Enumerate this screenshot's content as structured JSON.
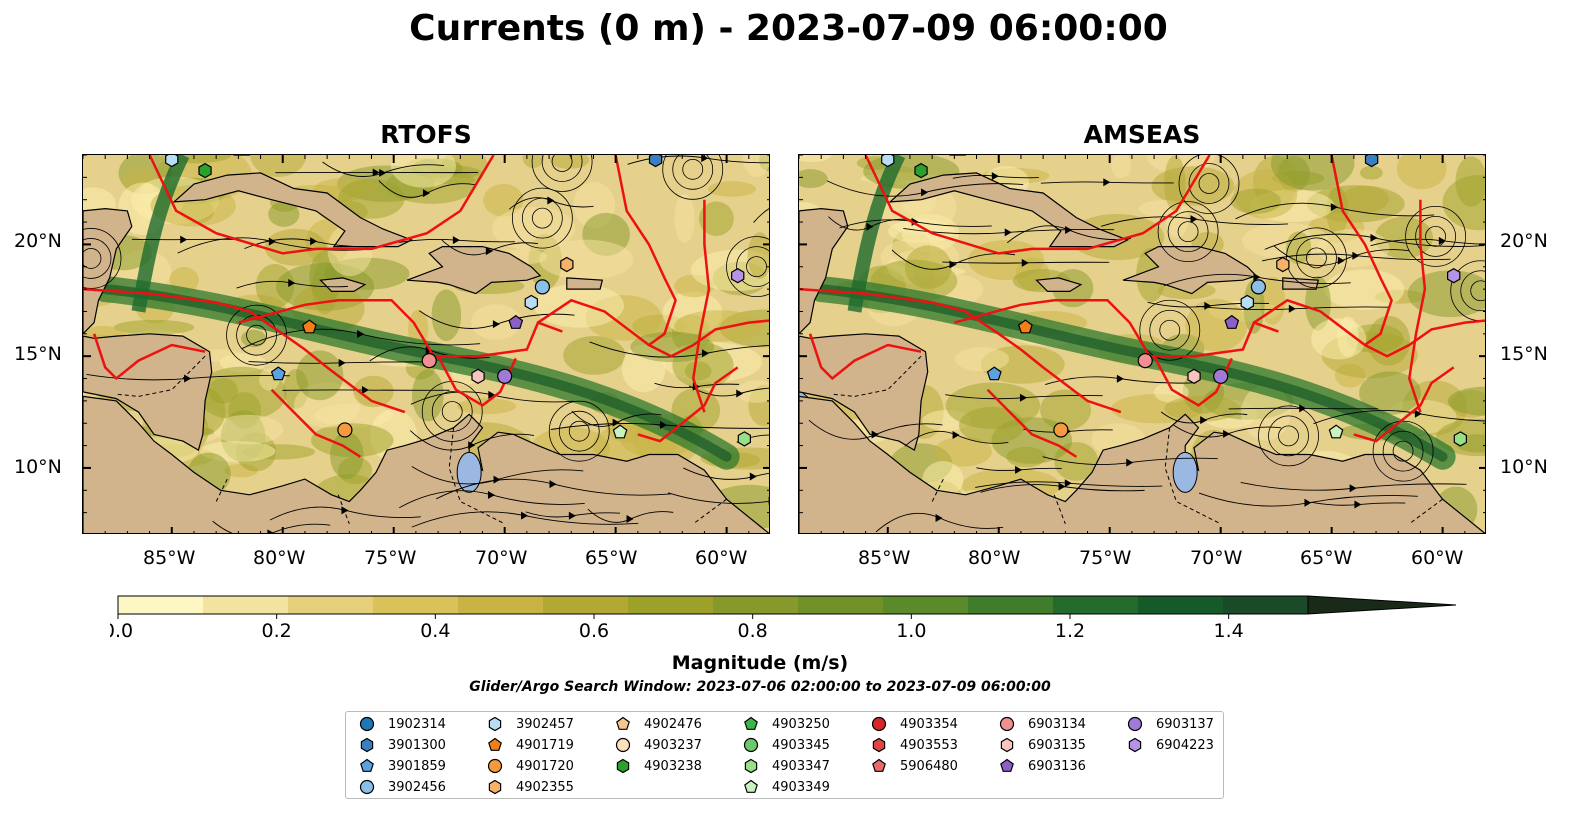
{
  "title": "Currents (0 m) - 2023-07-09 06:00:00",
  "panels": [
    {
      "title": "RTOFS"
    },
    {
      "title": "AMSEAS"
    }
  ],
  "axes": {
    "lon_labels": [
      "85°W",
      "80°W",
      "75°W",
      "70°W",
      "65°W",
      "60°W"
    ],
    "lat_labels": [
      "20°N",
      "15°N",
      "10°N"
    ],
    "lon_range": [
      -89,
      -58
    ],
    "lat_range": [
      7,
      24
    ]
  },
  "colorbar": {
    "title": "Magnitude (m/s)",
    "tick_labels": [
      "0.0",
      "0.2",
      "0.4",
      "0.6",
      "0.8",
      "1.0",
      "1.2",
      "1.4"
    ],
    "range": [
      0.0,
      1.5
    ],
    "extend": "max",
    "colors": [
      "#fdf7c3",
      "#f2e3a0",
      "#e6cf7a",
      "#d9c25a",
      "#c8b444",
      "#b3a834",
      "#9da12a",
      "#86992a",
      "#6f9128",
      "#5b8a2a",
      "#3f7d2c",
      "#236b2d",
      "#165a2a",
      "#1a4a28",
      "#1d3a22",
      "#1a2a19"
    ]
  },
  "subtitle": "Glider/Argo Search Window: 2023-07-06 02:00:00 to 2023-07-09 06:00:00",
  "legend": [
    {
      "label": "1902314",
      "marker": "circle",
      "color": "#1f77b4"
    },
    {
      "label": "3901300",
      "marker": "hexagon",
      "color": "#3a7fc1"
    },
    {
      "label": "3901859",
      "marker": "pentagon",
      "color": "#5aa3e0"
    },
    {
      "label": "3902456",
      "marker": "circle",
      "color": "#8cbfe8"
    },
    {
      "label": "3902457",
      "marker": "hexagon",
      "color": "#b9ddf5"
    },
    {
      "label": "4901719",
      "marker": "pentagon",
      "color": "#f57f17"
    },
    {
      "label": "4901720",
      "marker": "circle",
      "color": "#f59a3e"
    },
    {
      "label": "4902355",
      "marker": "hexagon",
      "color": "#f7b267"
    },
    {
      "label": "4902476",
      "marker": "pentagon",
      "color": "#f8c590"
    },
    {
      "label": "4903237",
      "marker": "circle",
      "color": "#fde0bc"
    },
    {
      "label": "4903238",
      "marker": "hexagon",
      "color": "#2ca02c"
    },
    {
      "label": "4903250",
      "marker": "pentagon",
      "color": "#3db54a"
    },
    {
      "label": "4903345",
      "marker": "circle",
      "color": "#6cc96c"
    },
    {
      "label": "4903347",
      "marker": "hexagon",
      "color": "#98df8a"
    },
    {
      "label": "4903349",
      "marker": "pentagon",
      "color": "#c9f2c0"
    },
    {
      "label": "4903354",
      "marker": "circle",
      "color": "#d62728"
    },
    {
      "label": "4903553",
      "marker": "hexagon",
      "color": "#e04545"
    },
    {
      "label": "5906480",
      "marker": "pentagon",
      "color": "#e86a6a"
    },
    {
      "label": "6903134",
      "marker": "circle",
      "color": "#f09090"
    },
    {
      "label": "6903135",
      "marker": "hexagon",
      "color": "#f8c4c0"
    },
    {
      "label": "6903136",
      "marker": "pentagon",
      "color": "#8c5fc7"
    },
    {
      "label": "6903137",
      "marker": "circle",
      "color": "#a07ad6"
    },
    {
      "label": "6904223",
      "marker": "hexagon",
      "color": "#b593e6"
    }
  ],
  "floats": [
    {
      "id": "3902457",
      "lon": -85.0,
      "lat": 23.8
    },
    {
      "id": "4903238",
      "lon": -83.5,
      "lat": 23.3
    },
    {
      "id": "3901300",
      "lon": -63.2,
      "lat": 23.8
    },
    {
      "id": "4902355",
      "lon": -67.2,
      "lat": 19.1
    },
    {
      "id": "6904223",
      "lon": -59.5,
      "lat": 18.6
    },
    {
      "id": "3902456",
      "lon": -68.3,
      "lat": 18.1
    },
    {
      "id": "3902457",
      "lon": -68.8,
      "lat": 17.4
    },
    {
      "id": "6903136",
      "lon": -69.5,
      "lat": 16.5
    },
    {
      "id": "4901719",
      "lon": -78.8,
      "lat": 16.3
    },
    {
      "id": "6903134",
      "lon": -73.4,
      "lat": 14.8
    },
    {
      "id": "3901859",
      "lon": -80.2,
      "lat": 14.2
    },
    {
      "id": "6903135",
      "lon": -71.2,
      "lat": 14.1
    },
    {
      "id": "6903137",
      "lon": -70.0,
      "lat": 14.1
    },
    {
      "id": "4901720",
      "lon": -77.2,
      "lat": 11.7
    },
    {
      "id": "4903349",
      "lon": -64.8,
      "lat": 11.6
    },
    {
      "id": "4903347",
      "lon": -59.2,
      "lat": 11.3
    }
  ]
}
